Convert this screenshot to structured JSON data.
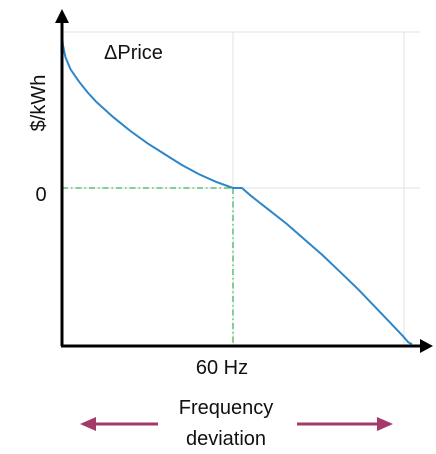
{
  "chart_data": {
    "type": "line",
    "annotation": "ΔPrice",
    "xlabel": "Frequency deviation",
    "xlabel_lines": [
      "Frequency",
      "deviation"
    ],
    "ylabel": "$/kWh",
    "x_ticks": [
      {
        "label": "60 Hz",
        "value": 0
      }
    ],
    "y_ticks": [
      {
        "label": "0",
        "value": 0
      }
    ],
    "xlim": [
      -1,
      1
    ],
    "ylim": [
      -1,
      1
    ],
    "grid": true,
    "series": [
      {
        "x": [
          -1.0,
          -0.995,
          -0.98,
          -0.95,
          -0.9,
          -0.85,
          -0.8,
          -0.7,
          -0.6,
          -0.5,
          -0.4,
          -0.3,
          -0.2,
          -0.1,
          0.0,
          0.05,
          0.1,
          0.2,
          0.3,
          0.4,
          0.5,
          0.6,
          0.7,
          0.8,
          0.9,
          0.95,
          0.98,
          1.0
        ],
        "y": [
          1.0,
          0.93,
          0.85,
          0.77,
          0.69,
          0.62,
          0.56,
          0.46,
          0.37,
          0.29,
          0.22,
          0.15,
          0.09,
          0.04,
          0.0,
          0.0,
          -0.05,
          -0.14,
          -0.23,
          -0.33,
          -0.43,
          -0.54,
          -0.65,
          -0.77,
          -0.89,
          -0.95,
          -0.99,
          -1.0
        ],
        "color": "#2e86c8"
      }
    ],
    "reference_lines": {
      "color": "#3cb84a",
      "style": "dash-dot"
    },
    "arrow_color": "#a33a6a"
  }
}
